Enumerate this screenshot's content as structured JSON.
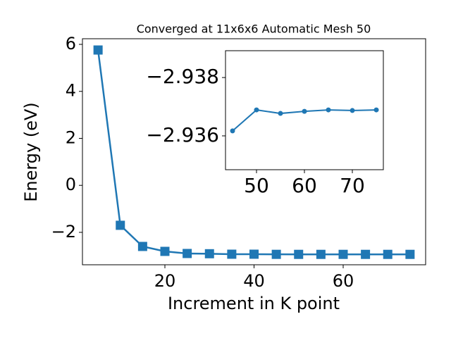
{
  "chart_data": [
    {
      "type": "line",
      "title": "Converged at 11x6x6 Automatic Mesh 50",
      "xlabel": "Increment in K point",
      "ylabel": "Energy (eV)",
      "x": [
        5,
        10,
        15,
        20,
        25,
        30,
        35,
        40,
        45,
        50,
        55,
        60,
        65,
        70,
        75
      ],
      "series": [
        {
          "color": "#1f77b4",
          "marker": "square",
          "values": [
            5.76,
            -1.7,
            -2.6,
            -2.81,
            -2.9,
            -2.91,
            -2.93,
            -2.93,
            -2.936,
            -2.937,
            -2.937,
            -2.937,
            -2.937,
            -2.937,
            -2.937
          ]
        }
      ],
      "xlim": [
        1.5,
        78.5
      ],
      "xticks": [
        20,
        40,
        60
      ],
      "ylim": [
        -3.38,
        6.24
      ],
      "yticks": [
        {
          "value": -2,
          "label": "−2"
        },
        0,
        2,
        4,
        6
      ]
    },
    {
      "type": "line",
      "x": [
        45,
        50,
        55,
        60,
        65,
        70,
        75
      ],
      "series": [
        {
          "color": "#1f77b4",
          "marker": "circle",
          "values": [
            -2.93617,
            -2.93689,
            -2.93677,
            -2.93684,
            -2.93689,
            -2.93687,
            -2.93689
          ]
        }
      ],
      "xlim": [
        43.53,
        76.47
      ],
      "xticks": [
        50,
        60,
        70
      ],
      "ylim": [
        -2.93484,
        -2.93892
      ],
      "yticks": [
        {
          "value": -2.936,
          "label": "−2.936"
        },
        {
          "value": -2.938,
          "label": "−2.938"
        }
      ]
    }
  ]
}
